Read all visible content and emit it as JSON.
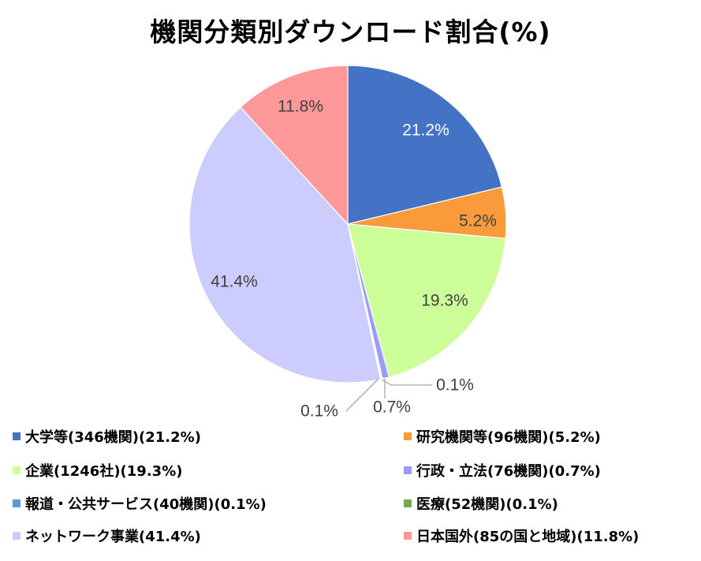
{
  "chart_data": {
    "type": "pie",
    "title": "機関分類別ダウンロード割合(%)",
    "slices": [
      {
        "legend": "大学等(346機関)(21.2%)",
        "label": "21.2%",
        "value": 21.2,
        "color": "#4472c4",
        "label_color": "#ffffff"
      },
      {
        "legend": "研究機関等(96機関)(5.2%)",
        "label": "5.2%",
        "value": 5.2,
        "color": "#fb9a3b",
        "label_color": "#404040"
      },
      {
        "legend": "企業(1246社)(19.3%)",
        "label": "19.3%",
        "value": 19.3,
        "color": "#ccff99",
        "label_color": "#404040"
      },
      {
        "legend": "行政・立法(76機関)(0.7%)",
        "label": "0.7%",
        "value": 0.7,
        "color": "#9a9aff",
        "label_color": "#404040"
      },
      {
        "legend": "報道・公共サービス(40機関)(0.1%)",
        "label": "0.1%",
        "value": 0.1,
        "color": "#5b9bd5",
        "label_color": "#404040"
      },
      {
        "legend": "医療(52機関)(0.1%)",
        "label": "0.1%",
        "value": 0.1,
        "color": "#70ad47",
        "label_color": "#404040"
      },
      {
        "legend": "ネットワーク事業(41.4%)",
        "label": "41.4%",
        "value": 41.4,
        "color": "#ccccff",
        "label_color": "#404040"
      },
      {
        "legend": "日本国外(85の国と地域)(11.8%)",
        "label": "11.8%",
        "value": 11.8,
        "color": "#ff9999",
        "label_color": "#404040"
      }
    ],
    "legend_position": "bottom"
  }
}
